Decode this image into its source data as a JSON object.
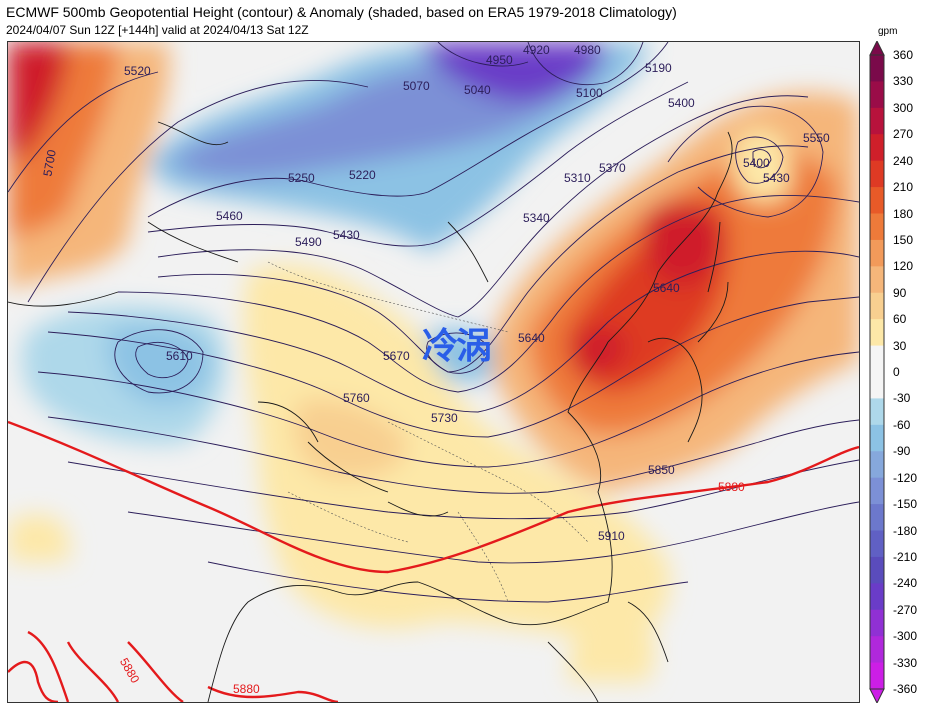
{
  "header": {
    "title": "ECMWF 500mb Geopotential Height (contour) & Anomaly (shaded, based on ERA5 1979-2018 Climatology)",
    "subtitle": "2024/04/07 Sun 12Z [+144h] valid at 2024/04/13 Sat 12Z"
  },
  "annotation": "冷涡",
  "colorbar": {
    "unit": "gpm",
    "ticks": [
      "360",
      "330",
      "300",
      "270",
      "240",
      "210",
      "180",
      "150",
      "120",
      "90",
      "60",
      "30",
      "0",
      "-30",
      "-60",
      "-90",
      "-120",
      "-150",
      "-180",
      "-210",
      "-240",
      "-270",
      "-300",
      "-330",
      "-360"
    ],
    "colors": [
      "#7a0a4a",
      "#9a0c48",
      "#b8123c",
      "#cf1f2a",
      "#de3a24",
      "#e85a28",
      "#ee7a3a",
      "#f29a5a",
      "#f5b67a",
      "#f8cf90",
      "#fde8a8",
      "#f5f5f5",
      "#f5f5f5",
      "#aed8ea",
      "#8cc2e4",
      "#86a8dc",
      "#7c90d6",
      "#6c78cc",
      "#6060c4",
      "#5a4cbc",
      "#6a3cc8",
      "#9030d4",
      "#b028dc",
      "#cc1ee6"
    ]
  },
  "contours": {
    "labels": [
      "5520",
      "5700",
      "4920",
      "4950",
      "4980",
      "5070",
      "5040",
      "5100",
      "5190",
      "5250",
      "5220",
      "5460",
      "5490",
      "5430",
      "5310",
      "5370",
      "5400",
      "5400",
      "5430",
      "5550",
      "5340",
      "5640",
      "5640",
      "5610",
      "5670",
      "5760",
      "5730",
      "5850",
      "5880",
      "5910",
      "5880",
      "5880"
    ],
    "highlight_color": "#e41a1c"
  },
  "colors": {
    "contour": "#2c1e5a",
    "coast": "#1a1a1a",
    "highlight": "#e41a1c"
  }
}
